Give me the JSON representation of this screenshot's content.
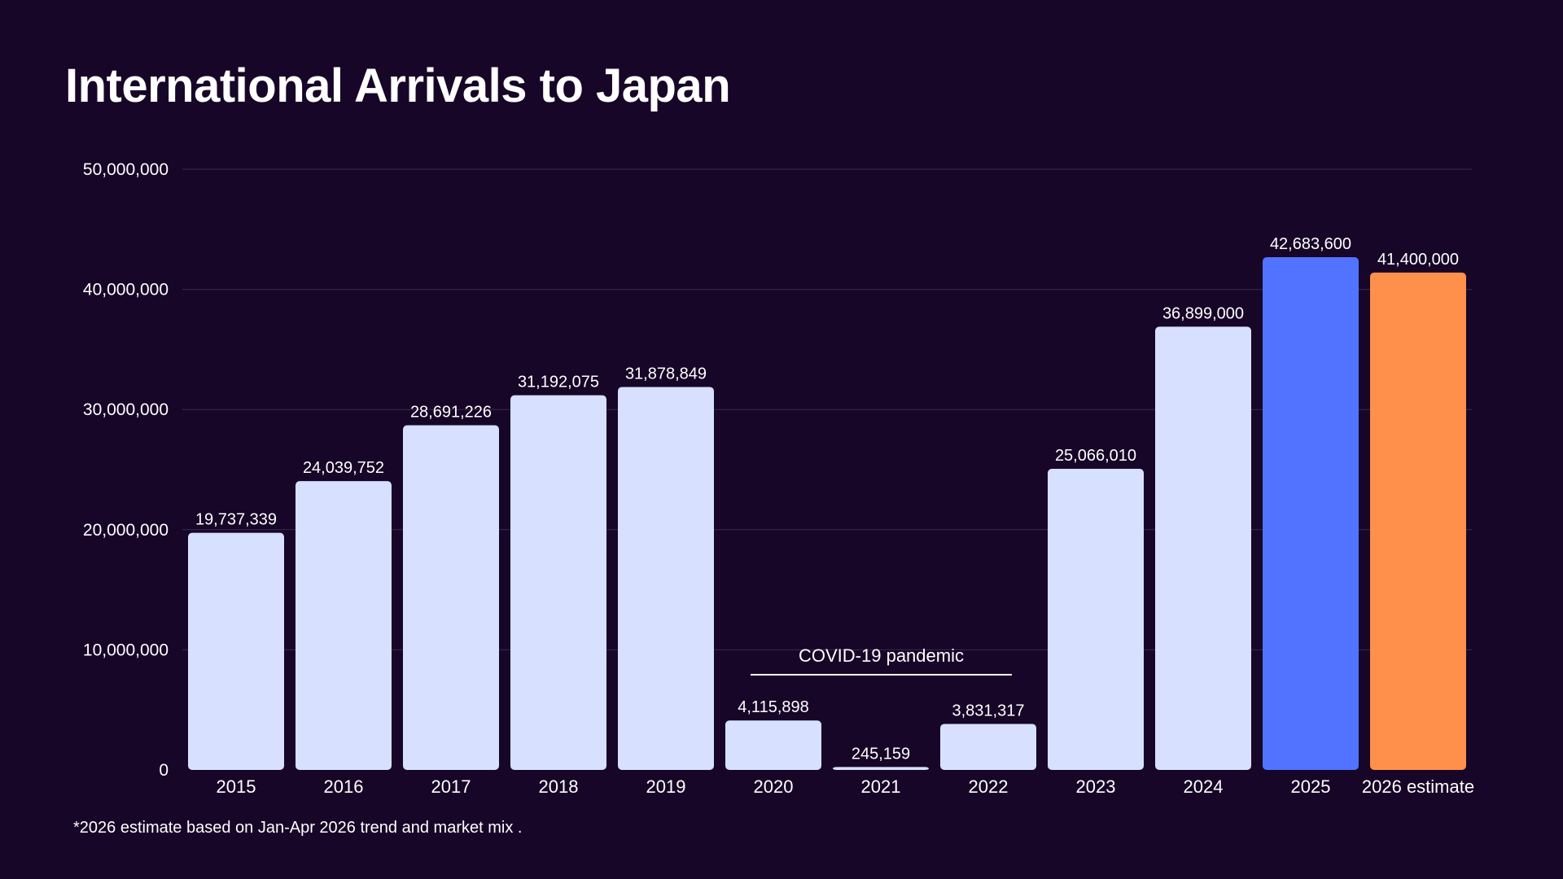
{
  "title": "International Arrivals to Japan",
  "footnote": "*2026 estimate based on Jan-Apr 2026 trend and market mix .",
  "colors": {
    "background": "#170628",
    "bar_default": "#d7e0ff",
    "bar_2025": "#5273ff",
    "bar_2026": "#ff904b",
    "grid": "#3a2a4e",
    "text": "#ffffff"
  },
  "chart_data": {
    "type": "bar",
    "title": "International Arrivals to Japan",
    "xlabel": "",
    "ylabel": "",
    "ylim": [
      0,
      50000000
    ],
    "yticks": [
      0,
      10000000,
      20000000,
      30000000,
      40000000,
      50000000
    ],
    "ytick_labels": [
      "0",
      "10,000,000",
      "20,000,000",
      "30,000,000",
      "40,000,000",
      "50,000,000"
    ],
    "grid": true,
    "categories": [
      "2015",
      "2016",
      "2017",
      "2018",
      "2019",
      "2020",
      "2021",
      "2022",
      "2023",
      "2024",
      "2025",
      "2026 estimate"
    ],
    "values": [
      19737339,
      24039752,
      28691226,
      31192075,
      31878849,
      4115898,
      245159,
      3831317,
      25066010,
      36899000,
      42683600,
      41400000
    ],
    "value_labels": [
      "19,737,339",
      "24,039,752",
      "28,691,226",
      "31,192,075",
      "31,878,849",
      "4,115,898",
      "245,159",
      "3,831,317",
      "25,066,010",
      "36,899,000",
      "42,683,600",
      "41,400,000"
    ],
    "bar_colors": [
      "#d7e0ff",
      "#d7e0ff",
      "#d7e0ff",
      "#d7e0ff",
      "#d7e0ff",
      "#d7e0ff",
      "#d7e0ff",
      "#d7e0ff",
      "#d7e0ff",
      "#d7e0ff",
      "#5273ff",
      "#ff904b"
    ],
    "annotations": [
      {
        "text": "COVID-19 pandemic",
        "from_category": "2020",
        "to_category": "2022"
      }
    ]
  }
}
